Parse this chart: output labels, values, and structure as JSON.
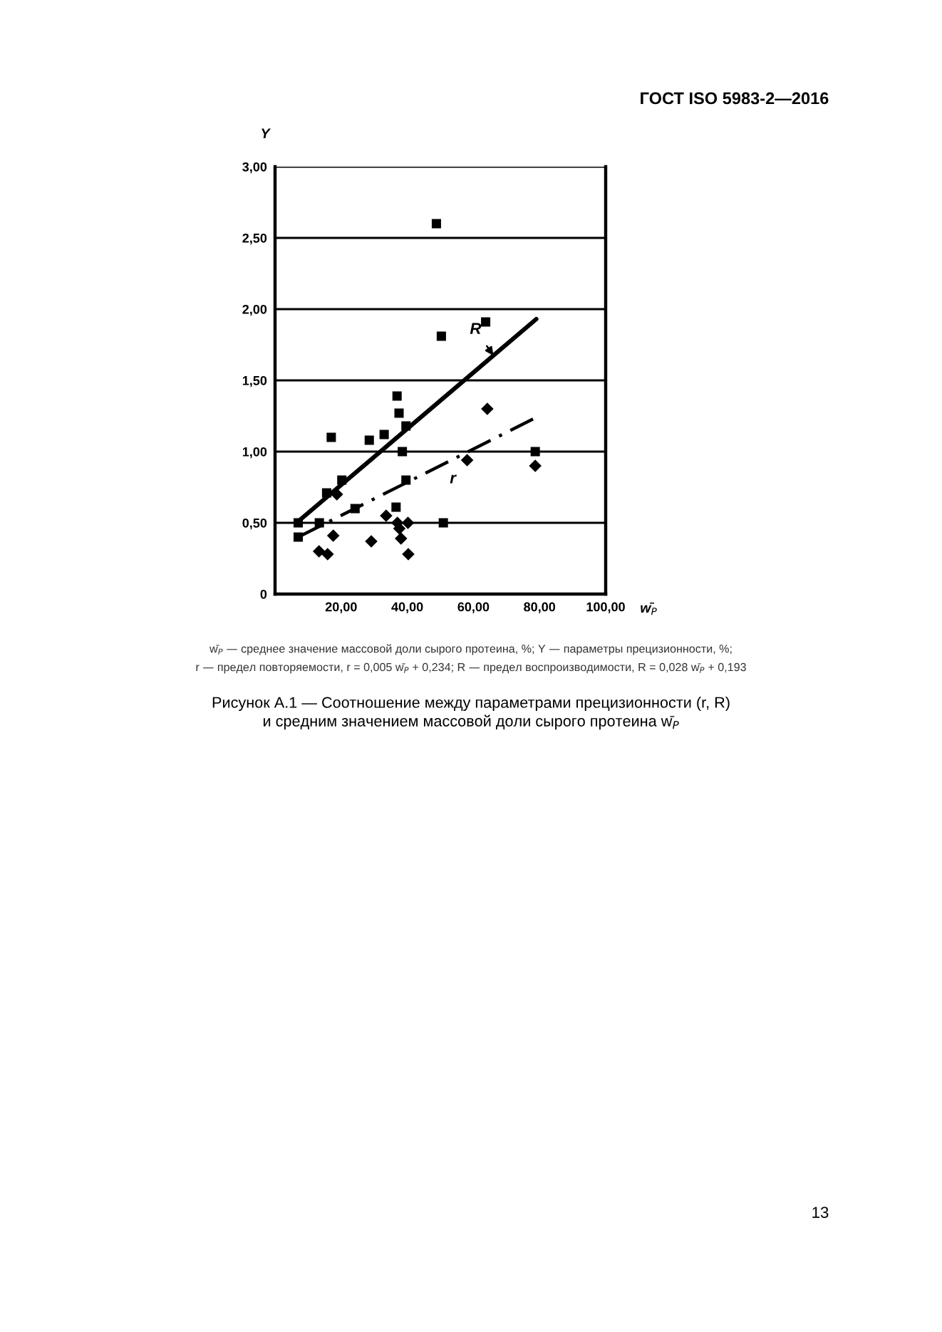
{
  "chart_data": {
    "type": "scatter",
    "xlabel": "w̄$_{P}$",
    "ylabel": "Y",
    "xlim": [
      0,
      100
    ],
    "ylim": [
      0,
      3
    ],
    "xticks": [
      {
        "value": 20,
        "label": "20,00"
      },
      {
        "value": 40,
        "label": "40,00"
      },
      {
        "value": 60,
        "label": "60,00"
      },
      {
        "value": 80,
        "label": "80,00"
      },
      {
        "value": 100,
        "label": "100,00"
      }
    ],
    "yticks": [
      {
        "value": 0,
        "label": "0"
      },
      {
        "value": 0.5,
        "label": "0,50"
      },
      {
        "value": 1,
        "label": "1,00"
      },
      {
        "value": 1.5,
        "label": "1,50"
      },
      {
        "value": 2,
        "label": "2,00"
      },
      {
        "value": 2.5,
        "label": "2,50"
      },
      {
        "value": 3,
        "label": "3,00"
      }
    ],
    "grid": "y",
    "legend": false,
    "series": [
      {
        "marker": "square",
        "color": "#000000",
        "x": [
          7.0,
          7.0,
          13.4,
          17.0,
          15.6,
          20.2,
          24.2,
          28.5,
          33.0,
          36.9,
          37.5,
          38.5,
          39.6,
          39.6,
          36.6,
          50.9,
          78.7,
          48.8,
          50.3,
          63.7
        ],
        "values": [
          0.5,
          0.4,
          0.5,
          1.1,
          0.71,
          0.8,
          0.6,
          1.08,
          1.12,
          1.39,
          1.27,
          1.0,
          1.18,
          0.8,
          0.61,
          0.5,
          1.0,
          2.6,
          1.81,
          1.91
        ]
      },
      {
        "marker": "diamond",
        "color": "#000000",
        "x": [
          13.3,
          15.9,
          17.6,
          18.7,
          29.1,
          33.6,
          37.0,
          37.6,
          38.1,
          40.2,
          40.3,
          58.1,
          64.2,
          78.7
        ],
        "values": [
          0.3,
          0.28,
          0.41,
          0.7,
          0.37,
          0.55,
          0.5,
          0.46,
          0.39,
          0.5,
          0.28,
          0.94,
          1.3,
          0.9
        ]
      },
      {
        "type": "line",
        "name": "R",
        "line_style": "solid",
        "color": "#000000",
        "x": [
          7,
          79
        ],
        "values": [
          0.51,
          1.93
        ]
      },
      {
        "type": "line",
        "name": "r",
        "line_style": "dashed",
        "color": "#000000",
        "x": [
          7,
          79
        ],
        "values": [
          0.4,
          1.24
        ]
      }
    ],
    "annotations": [
      "ГОСТ ISO 5983-2—2016",
      "w̄$_{P}$ — среднее значение массовой доли сырого протеина, %; Y — параметры прецизионности, %;",
      "r — предел повторяемости, r = 0,005 w̄$_{P}$ + 0,234; R — предел воспроизводимости, R = 0,028 w̄$_{P}$ + 0,193",
      "Рисунок А.1 — Соотношение между параметрами прецизионности (r, R)",
      "и средним значением массовой доли сырого протеина w̄$_{P}$",
      "13"
    ]
  }
}
